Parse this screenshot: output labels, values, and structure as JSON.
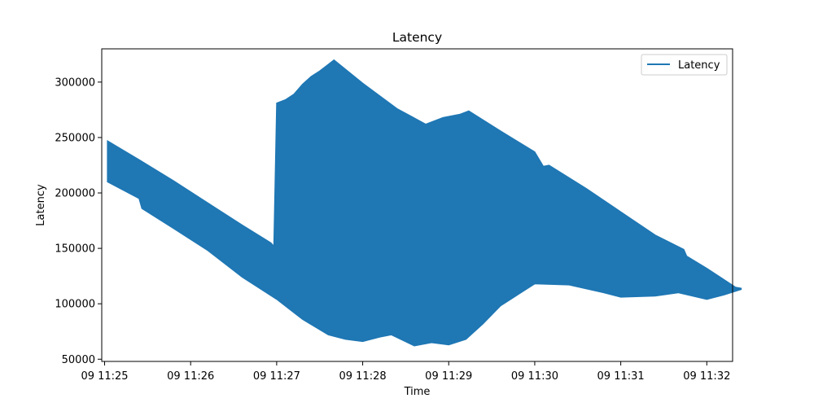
{
  "chart_data": {
    "type": "area",
    "title": "Latency",
    "xlabel": "Time",
    "ylabel": "Latency",
    "x_ticks": [
      "09 11:25",
      "09 11:26",
      "09 11:27",
      "09 11:28",
      "09 11:29",
      "09 11:30",
      "09 11:31",
      "09 11:32"
    ],
    "y_ticks": [
      50000,
      100000,
      150000,
      200000,
      250000,
      300000
    ],
    "xlim": [
      "11:24:58",
      "11:32:18"
    ],
    "ylim": [
      48000,
      330000
    ],
    "legend": {
      "label": "Latency",
      "position": "top-right"
    },
    "grid": false,
    "series": [
      {
        "name": "Latency",
        "color": "#1f77b4",
        "note_type": "dense oscillating line rendered as filled envelope",
        "upper": [
          [
            "11:25:02",
            247000
          ],
          [
            "11:25:24",
            230000
          ],
          [
            "11:25:48",
            211000
          ],
          [
            "11:26:12",
            191000
          ],
          [
            "11:26:36",
            171000
          ],
          [
            "11:26:56",
            155000
          ],
          [
            "11:26:58",
            152000
          ],
          [
            "11:27:00",
            281000
          ],
          [
            "11:27:06",
            284000
          ],
          [
            "11:27:12",
            289000
          ],
          [
            "11:27:18",
            298000
          ],
          [
            "11:27:24",
            305000
          ],
          [
            "11:27:30",
            310000
          ],
          [
            "11:27:36",
            316000
          ],
          [
            "11:27:40",
            320000
          ],
          [
            "11:28:00",
            299000
          ],
          [
            "11:28:24",
            276000
          ],
          [
            "11:28:44",
            262000
          ],
          [
            "11:28:56",
            268000
          ],
          [
            "11:29:08",
            271000
          ],
          [
            "11:29:14",
            274000
          ],
          [
            "11:29:36",
            256000
          ],
          [
            "11:30:00",
            237000
          ],
          [
            "11:30:06",
            224000
          ],
          [
            "11:30:10",
            225000
          ],
          [
            "11:30:36",
            204000
          ],
          [
            "11:31:00",
            183000
          ],
          [
            "11:31:24",
            162000
          ],
          [
            "11:31:44",
            149000
          ],
          [
            "11:31:46",
            143000
          ],
          [
            "11:32:00",
            132000
          ],
          [
            "11:32:20",
            115000
          ],
          [
            "11:32:24",
            114000
          ]
        ],
        "lower": [
          [
            "11:25:02",
            210000
          ],
          [
            "11:25:24",
            195000
          ],
          [
            "11:25:26",
            186000
          ],
          [
            "11:25:48",
            168000
          ],
          [
            "11:26:12",
            148000
          ],
          [
            "11:26:36",
            124000
          ],
          [
            "11:27:00",
            104000
          ],
          [
            "11:27:18",
            86000
          ],
          [
            "11:27:36",
            72000
          ],
          [
            "11:27:48",
            68000
          ],
          [
            "11:28:00",
            66000
          ],
          [
            "11:28:12",
            70000
          ],
          [
            "11:28:20",
            72000
          ],
          [
            "11:28:36",
            62000
          ],
          [
            "11:28:48",
            65000
          ],
          [
            "11:29:00",
            63000
          ],
          [
            "11:29:12",
            68000
          ],
          [
            "11:29:24",
            82000
          ],
          [
            "11:29:36",
            98000
          ],
          [
            "11:29:48",
            108000
          ],
          [
            "11:30:00",
            118000
          ],
          [
            "11:30:24",
            117000
          ],
          [
            "11:30:48",
            110000
          ],
          [
            "11:31:00",
            106000
          ],
          [
            "11:31:24",
            107000
          ],
          [
            "11:31:40",
            110000
          ],
          [
            "11:32:00",
            104000
          ],
          [
            "11:32:12",
            108000
          ],
          [
            "11:32:24",
            113000
          ]
        ]
      }
    ]
  }
}
